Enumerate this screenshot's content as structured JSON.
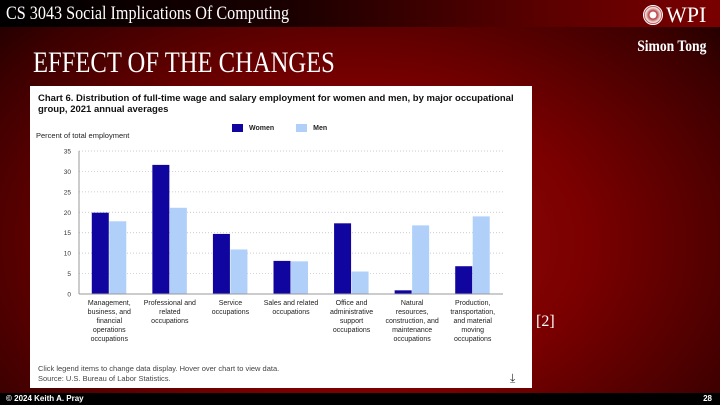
{
  "header": {
    "course": "CS 3043 Social Implications Of Computing",
    "logo_text": "WPI",
    "author": "Simon Tong"
  },
  "slide": {
    "title": "EFFECT OF THE CHANGES",
    "reference": "[2]"
  },
  "footer": {
    "copyright": "© 2024 Keith A. Pray",
    "page": "28"
  },
  "chart_note": "Click legend items to change data display. Hover over chart to view data.",
  "chart_source": "Source: U.S. Bureau of Labor Statistics.",
  "colors": {
    "women": "#10069f",
    "men": "#b0d0fa"
  },
  "chart_data": {
    "type": "bar",
    "title": "Chart 6. Distribution of full-time wage and salary employment for women and men, by major occupational group, 2021 annual averages",
    "ylabel": "Percent of total employment",
    "xlabel": "",
    "ylim": [
      0,
      35
    ],
    "yticks": [
      0,
      5,
      10,
      15,
      20,
      25,
      30,
      35
    ],
    "grid": true,
    "legend": "top-center",
    "categories": [
      [
        "Management,",
        "business, and",
        "financial",
        "operations",
        "occupations"
      ],
      [
        "Professional and",
        "related",
        "occupations"
      ],
      [
        "Service",
        "occupations"
      ],
      [
        "Sales and related",
        "occupations"
      ],
      [
        "Office and",
        "administrative",
        "support",
        "occupations"
      ],
      [
        "Natural",
        "resources,",
        "construction, and",
        "maintenance",
        "occupations"
      ],
      [
        "Production,",
        "transportation,",
        "and material",
        "moving",
        "occupations"
      ]
    ],
    "series": [
      {
        "name": "Women",
        "values": [
          19.9,
          31.6,
          14.7,
          8.1,
          17.3,
          0.9,
          6.8
        ]
      },
      {
        "name": "Men",
        "values": [
          17.8,
          21.1,
          10.9,
          8.0,
          5.5,
          16.8,
          19.0
        ]
      }
    ]
  }
}
